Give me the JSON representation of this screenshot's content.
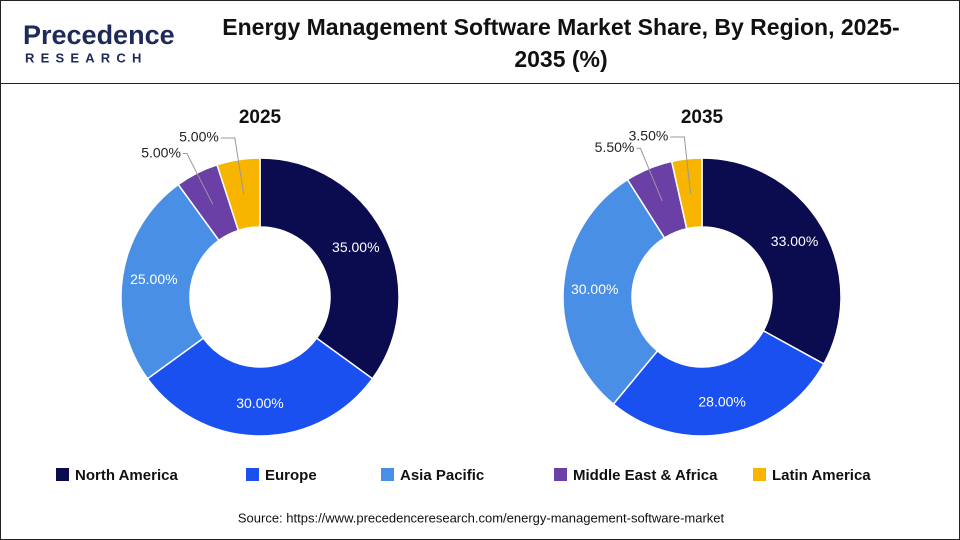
{
  "logo": {
    "name": "Precedence",
    "sub": "RESEARCH"
  },
  "title": "Energy Management Software Market Share, By Region, 2025-2035 (%)",
  "chart_data": [
    {
      "type": "donut",
      "title": "2025",
      "categories": [
        "North America",
        "Europe",
        "Asia Pacific",
        "Middle East & Africa",
        "Latin America"
      ],
      "colors": [
        "#0b0b4f",
        "#1a4ff0",
        "#4a8fe6",
        "#6a3fa6",
        "#f7b500"
      ],
      "values": [
        35,
        30,
        25,
        5,
        5
      ],
      "value_labels": [
        "35.00%",
        "30.00%",
        "25.00%",
        "5.00%",
        "5.00%"
      ]
    },
    {
      "type": "donut",
      "title": "2035",
      "categories": [
        "North America",
        "Europe",
        "Asia Pacific",
        "Middle East & Africa",
        "Latin America"
      ],
      "colors": [
        "#0b0b4f",
        "#1a4ff0",
        "#4a8fe6",
        "#6a3fa6",
        "#f7b500"
      ],
      "values": [
        33,
        28,
        30,
        5.5,
        3.5
      ],
      "value_labels": [
        "33.00%",
        "28.00%",
        "30.00%",
        "5.50%",
        "3.50%"
      ]
    }
  ],
  "source": "Source: https://www.precedenceresearch.com/energy-management-software-market"
}
